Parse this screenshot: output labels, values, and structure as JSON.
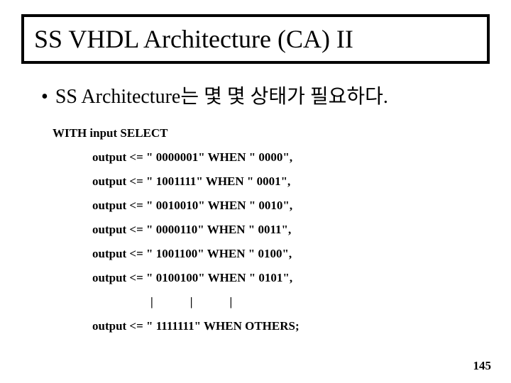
{
  "title": "SS VHDL Architecture (CA) II",
  "bullet": {
    "marker": "•",
    "text": "SS Architecture는 몇 몇 상태가 필요하다."
  },
  "code": {
    "with_line": "WITH input SELECT",
    "lines": [
      "output <= \" 0000001\" WHEN \" 0000\",",
      "output <= \" 1001111\" WHEN \" 0001\",",
      "output <= \" 0010010\" WHEN \" 0010\",",
      "output <= \" 0000110\" WHEN \" 0011\",",
      "output <= \" 1001100\" WHEN \" 0100\",",
      "output <= \" 0100100\" WHEN \" 0101\","
    ],
    "vbars": "|||",
    "last_line": "output <= \" 1111111\" WHEN OTHERS;"
  },
  "page_number": "145"
}
